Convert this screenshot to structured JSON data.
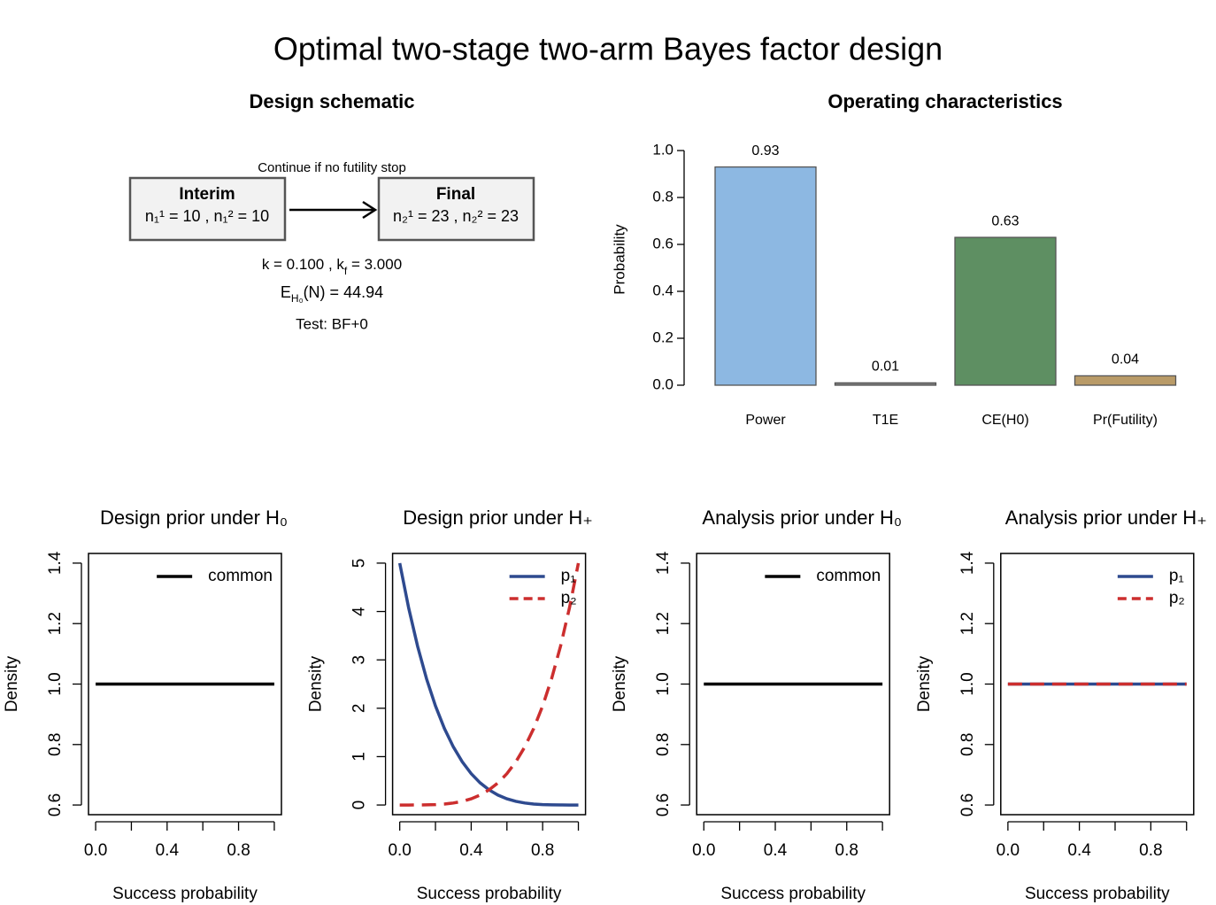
{
  "title": "Optimal two-stage two-arm Bayes factor design",
  "schematic": {
    "title": "Design schematic",
    "arrow_label": "Continue if no futility stop",
    "interim": {
      "label": "Interim",
      "n": "n₁¹ = 10 , n₁² = 10"
    },
    "final": {
      "label": "Final",
      "n": "n₂¹ = 23 , n₂² = 23"
    },
    "k_line": [
      "k = 0.100 , k",
      "f",
      " = 3.000"
    ],
    "e_line": [
      "E",
      "H₀",
      "(N) = 44.94"
    ],
    "test": "Test: BF+0"
  },
  "chart_data": [
    {
      "type": "bar",
      "title": "Operating characteristics",
      "ylabel": "Probability",
      "categories": [
        "Power",
        "T1E",
        "CE(H0)",
        "Pr(Futility)"
      ],
      "values": [
        0.93,
        0.01,
        0.63,
        0.04
      ],
      "colors": [
        "#8db8e2",
        "#7f7f7f",
        "#5e8f62",
        "#b99b68"
      ],
      "ylim": [
        0,
        1
      ],
      "yticks": [
        {
          "value": 0,
          "label": "0.0"
        },
        0.2,
        0.4,
        0.6,
        0.8,
        {
          "value": 1,
          "label": "1.0"
        }
      ]
    },
    {
      "type": "line",
      "title": "Design prior under H₀",
      "xlabel": "Success probability",
      "ylabel": "Density",
      "x": [
        0,
        1
      ],
      "series": [
        {
          "name": "common",
          "color": "#000000",
          "linestyle": "solid",
          "values": [
            1,
            1
          ]
        }
      ],
      "xlim": [
        -0.04,
        1.04
      ],
      "ylim": [
        0.568,
        1.432
      ],
      "xticks": [
        {
          "value": 0,
          "label": "0.0"
        },
        {
          "value": 0.2,
          "label": null
        },
        {
          "value": 0.4,
          "label": "0.4"
        },
        {
          "value": 0.6,
          "label": null
        },
        {
          "value": 0.8,
          "label": "0.8"
        },
        {
          "value": 1,
          "label": null
        }
      ],
      "yticks": [
        0.6,
        0.8,
        {
          "value": 1,
          "label": "1.0"
        },
        1.2,
        1.4
      ],
      "legend": "topright"
    },
    {
      "type": "line",
      "title": "Design prior under H₊",
      "xlabel": "Success probability",
      "ylabel": "Density",
      "x": [
        0,
        0.05,
        0.1,
        0.15,
        0.2,
        0.25,
        0.3,
        0.35,
        0.4,
        0.45,
        0.5,
        0.55,
        0.6,
        0.65,
        0.7,
        0.75,
        0.8,
        0.85,
        0.9,
        0.95,
        1
      ],
      "series": [
        {
          "name": "p₁",
          "color": "#2e4a8f",
          "linestyle": "solid",
          "values": [
            5,
            4.073,
            3.281,
            2.61,
            2.048,
            1.582,
            1.201,
            0.893,
            0.648,
            0.458,
            0.313,
            0.205,
            0.128,
            0.075,
            0.041,
            0.02,
            0.008,
            0.003,
            0.001,
            0,
            0
          ]
        },
        {
          "name": "p₂",
          "color": "#cc2e2e",
          "linestyle": "dashed",
          "values": [
            0,
            0,
            0.001,
            0.003,
            0.008,
            0.02,
            0.041,
            0.075,
            0.128,
            0.205,
            0.313,
            0.458,
            0.648,
            0.893,
            1.201,
            1.582,
            2.048,
            2.61,
            3.281,
            4.073,
            5
          ]
        }
      ],
      "xlim": [
        -0.04,
        1.04
      ],
      "ylim": [
        -0.2,
        5.2
      ],
      "xticks": [
        {
          "value": 0,
          "label": "0.0"
        },
        {
          "value": 0.2,
          "label": null
        },
        {
          "value": 0.4,
          "label": "0.4"
        },
        {
          "value": 0.6,
          "label": null
        },
        {
          "value": 0.8,
          "label": "0.8"
        },
        {
          "value": 1,
          "label": null
        }
      ],
      "yticks": [
        0,
        1,
        2,
        3,
        4,
        5
      ],
      "legend": "topright"
    },
    {
      "type": "line",
      "title": "Analysis prior under H₀",
      "xlabel": "Success probability",
      "ylabel": "Density",
      "x": [
        0,
        1
      ],
      "series": [
        {
          "name": "common",
          "color": "#000000",
          "linestyle": "solid",
          "values": [
            1,
            1
          ]
        }
      ],
      "xlim": [
        -0.04,
        1.04
      ],
      "ylim": [
        0.568,
        1.432
      ],
      "xticks": [
        {
          "value": 0,
          "label": "0.0"
        },
        {
          "value": 0.2,
          "label": null
        },
        {
          "value": 0.4,
          "label": "0.4"
        },
        {
          "value": 0.6,
          "label": null
        },
        {
          "value": 0.8,
          "label": "0.8"
        },
        {
          "value": 1,
          "label": null
        }
      ],
      "yticks": [
        0.6,
        0.8,
        {
          "value": 1,
          "label": "1.0"
        },
        1.2,
        1.4
      ],
      "legend": "topright"
    },
    {
      "type": "line",
      "title": "Analysis prior under H₊",
      "xlabel": "Success probability",
      "ylabel": "Density",
      "x": [
        0,
        1
      ],
      "series": [
        {
          "name": "p₁",
          "color": "#2e4a8f",
          "linestyle": "solid",
          "values": [
            1,
            1
          ]
        },
        {
          "name": "p₂",
          "color": "#cc2e2e",
          "linestyle": "dashed",
          "values": [
            1,
            1
          ]
        }
      ],
      "xlim": [
        -0.04,
        1.04
      ],
      "ylim": [
        0.568,
        1.432
      ],
      "xticks": [
        {
          "value": 0,
          "label": "0.0"
        },
        {
          "value": 0.2,
          "label": null
        },
        {
          "value": 0.4,
          "label": "0.4"
        },
        {
          "value": 0.6,
          "label": null
        },
        {
          "value": 0.8,
          "label": "0.8"
        },
        {
          "value": 1,
          "label": null
        }
      ],
      "yticks": [
        0.6,
        0.8,
        {
          "value": 1,
          "label": "1.0"
        },
        1.2,
        1.4
      ],
      "legend": "topright"
    }
  ]
}
